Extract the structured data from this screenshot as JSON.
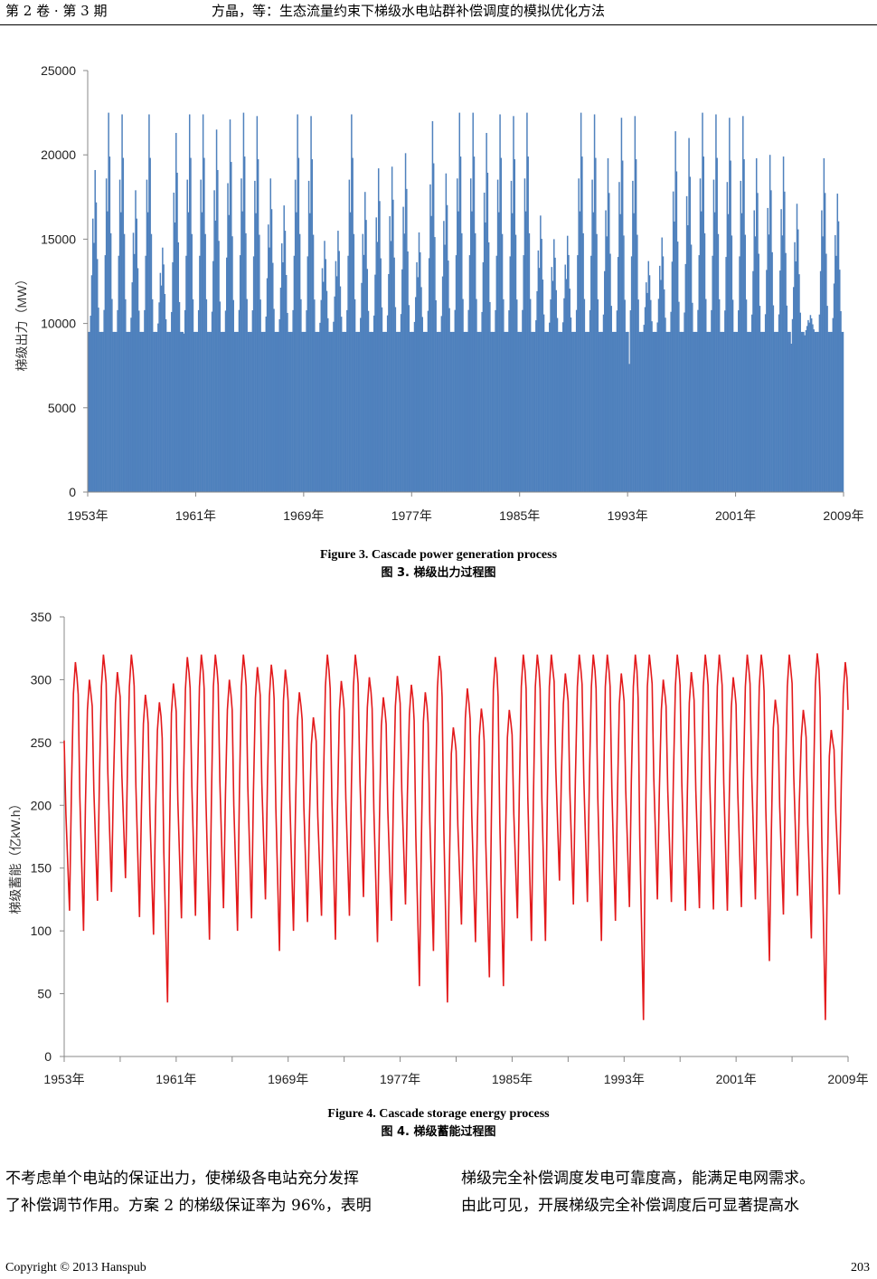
{
  "header": {
    "volume_issue": "第 2 卷 · 第 3 期",
    "article": "方晶，等：生态流量约束下梯级水电站群补偿调度的模拟优化方法"
  },
  "figure3": {
    "caption_en": "Figure 3. Cascade power generation process",
    "caption_cn": "图 3. 梯级出力过程图"
  },
  "figure4": {
    "caption_en": "Figure 4. Cascade storage energy process",
    "caption_cn": "图 4. 梯级蓄能过程图"
  },
  "body": {
    "left_lines": [
      "不考虑单个电站的保证出力，使梯级各电站充分发挥",
      "了补偿调节作用。方案 2 的梯级保证率为 96%，表明"
    ],
    "right_lines": [
      "梯级完全补偿调度发电可靠度高，能满足电网需求。",
      "由此可见，开展梯级完全补偿调度后可显著提高水"
    ]
  },
  "footer": {
    "copyright": "Copyright © 2013 Hanspub",
    "page": "203"
  },
  "chart_data": [
    {
      "type": "bar",
      "title": "",
      "ylabel": "梯级出力（MW）",
      "xlabel": "",
      "ylim": [
        0,
        25000
      ],
      "yticks": [
        "0",
        "5000",
        "10000",
        "15000",
        "20000",
        "25000"
      ],
      "xticks": [
        "1953年",
        "1961年",
        "1969年",
        "1977年",
        "1985年",
        "1993年",
        "2001年",
        "2009年"
      ],
      "x_range": [
        "1953-01",
        "2009-12"
      ],
      "color": "#4F81BD",
      "base_output": 9500,
      "annual_peaks": [
        19100,
        22500,
        22400,
        17900,
        22400,
        14500,
        21300,
        22400,
        22400,
        21500,
        22100,
        22500,
        22300,
        18600,
        17000,
        22400,
        22300,
        14900,
        15500,
        22400,
        17800,
        19200,
        19300,
        20100,
        15400,
        22000,
        18900,
        22500,
        22500,
        21300,
        22400,
        22300,
        22500,
        16400,
        15000,
        15200,
        22500,
        22400,
        19800,
        22200,
        22300,
        13700,
        15100,
        21400,
        21000,
        22500,
        22400,
        22200,
        22300,
        19800,
        20000,
        19900,
        17100,
        10500,
        19800,
        17700
      ],
      "annual_minimums": [
        9500,
        9500,
        9500,
        9500,
        9500,
        9500,
        9500,
        9400,
        9500,
        9500,
        9500,
        9500,
        9500,
        9500,
        9500,
        9500,
        9500,
        9500,
        9500,
        9500,
        9500,
        9500,
        9500,
        9500,
        9500,
        9500,
        9500,
        9500,
        9500,
        9500,
        9500,
        9500,
        9500,
        9500,
        9500,
        9500,
        9500,
        9500,
        9500,
        9500,
        7600,
        9500,
        9500,
        9500,
        9500,
        9500,
        9500,
        9500,
        9500,
        9500,
        9500,
        9500,
        8800,
        9300,
        9500,
        9500
      ]
    },
    {
      "type": "line",
      "title": "",
      "ylabel": "梯级蓄能（亿kW.h）",
      "xlabel": "",
      "ylim": [
        0,
        350
      ],
      "yticks": [
        "0",
        "50",
        "100",
        "150",
        "200",
        "250",
        "300",
        "350"
      ],
      "xticks": [
        "1953年",
        "1961年",
        "1969年",
        "1977年",
        "1985年",
        "1993年",
        "2001年",
        "2009年"
      ],
      "x_range": [
        "1953-01",
        "2009-12"
      ],
      "color": "#E31A1C",
      "annual_maximums": [
        314,
        300,
        320,
        306,
        320,
        288,
        282,
        297,
        318,
        320,
        320,
        300,
        320,
        310,
        312,
        308,
        290,
        270,
        320,
        299,
        320,
        302,
        286,
        303,
        296,
        290,
        319,
        262,
        293,
        277,
        318,
        276,
        320,
        320,
        320,
        305,
        320,
        320,
        320,
        305,
        320,
        320,
        300,
        320,
        306,
        320,
        320,
        302,
        320,
        320,
        284,
        320,
        276,
        321,
        260,
        314
      ],
      "annual_minimums": [
        116,
        100,
        124,
        131,
        142,
        111,
        97,
        43,
        110,
        112,
        93,
        118,
        100,
        110,
        125,
        84,
        100,
        107,
        112,
        93,
        112,
        127,
        91,
        108,
        121,
        56,
        84,
        43,
        105,
        91,
        63,
        56,
        110,
        92,
        92,
        140,
        121,
        123,
        92,
        108,
        119,
        29,
        125,
        123,
        116,
        118,
        117,
        116,
        119,
        125,
        76,
        113,
        128,
        94,
        29,
        129
      ]
    }
  ]
}
